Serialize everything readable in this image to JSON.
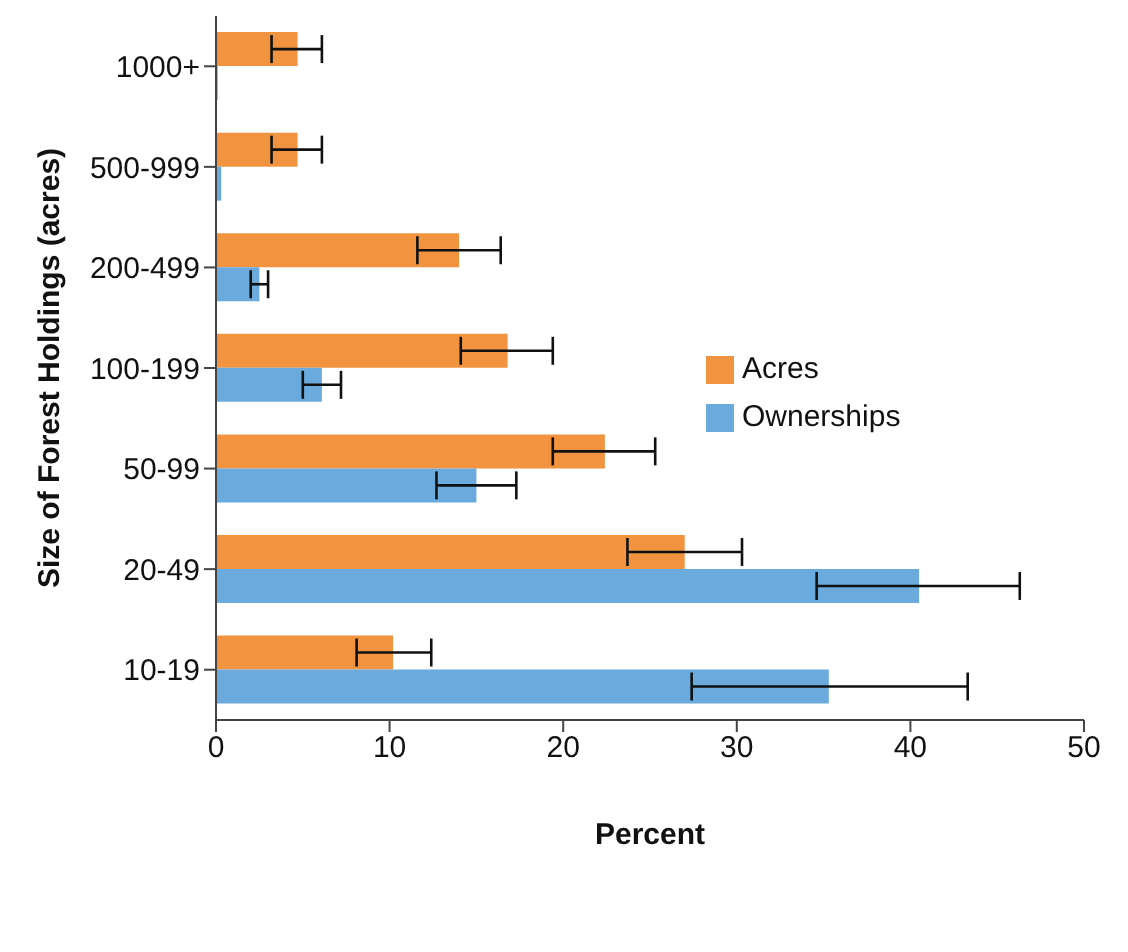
{
  "chart_data": {
    "type": "bar",
    "orientation": "horizontal",
    "xlabel": "Percent",
    "ylabel": "Size of Forest Holdings (acres)",
    "categories": [
      "1000+",
      "500-999",
      "200-499",
      "100-199",
      "50-99",
      "20-49",
      "10-19"
    ],
    "series": [
      {
        "name": "Acres",
        "color": "#f2943f",
        "values": [
          4.7,
          4.7,
          14.0,
          16.8,
          22.4,
          27.0,
          10.2
        ],
        "errors": [
          [
            3.2,
            6.1
          ],
          [
            3.2,
            6.1
          ],
          [
            11.6,
            16.4
          ],
          [
            14.1,
            19.4
          ],
          [
            19.4,
            25.3
          ],
          [
            23.7,
            30.3
          ],
          [
            8.1,
            12.4
          ]
        ]
      },
      {
        "name": "Ownerships",
        "color": "#6aaadd",
        "values": [
          0.1,
          0.3,
          2.5,
          6.1,
          15.0,
          40.5,
          35.3
        ],
        "errors": [
          null,
          null,
          [
            2.0,
            3.0
          ],
          [
            5.0,
            7.2
          ],
          [
            12.7,
            17.3
          ],
          [
            34.6,
            46.3
          ],
          [
            27.4,
            43.3
          ]
        ]
      }
    ],
    "xlim": [
      0,
      50
    ],
    "xticks": [
      0,
      10,
      20,
      30,
      40,
      50
    ],
    "legend": "right",
    "grid": false
  }
}
